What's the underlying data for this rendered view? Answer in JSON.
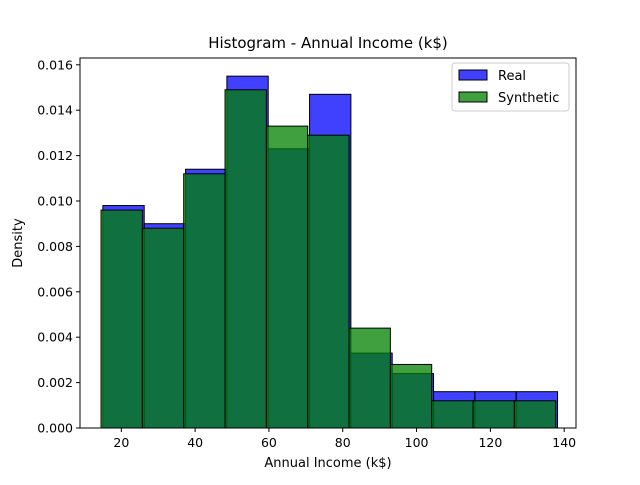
{
  "chart_data": {
    "type": "bar",
    "title": "Histogram - Annual Income (k$)",
    "xlabel": "Annual Income (k$)",
    "ylabel": "Density",
    "xlim": [
      8.8,
      143.2
    ],
    "ylim": [
      0,
      0.0163
    ],
    "xticks": [
      20,
      40,
      60,
      80,
      100,
      120,
      140
    ],
    "yticks": [
      0.0,
      0.002,
      0.004,
      0.006,
      0.008,
      0.01,
      0.012,
      0.014,
      0.016
    ],
    "ytick_labels": [
      "0.000",
      "0.002",
      "0.004",
      "0.006",
      "0.008",
      "0.010",
      "0.012",
      "0.014",
      "0.016"
    ],
    "grid": false,
    "legend_position": "top-right",
    "series": [
      {
        "name": "Real",
        "color": "#0000ff",
        "opacity": 0.75,
        "bin_edges": [
          15,
          26.2,
          37.4,
          48.6,
          59.8,
          71,
          82.2,
          93.4,
          104.6,
          115.8,
          127,
          138.2
        ],
        "values": [
          0.0098,
          0.009,
          0.0114,
          0.0155,
          0.0123,
          0.0147,
          0.0033,
          0.0024,
          0.0016,
          0.0016,
          0.0016
        ]
      },
      {
        "name": "Synthetic",
        "color": "#008000",
        "opacity": 0.75,
        "bin_edges": [
          14.5,
          25.7,
          36.9,
          48.1,
          59.3,
          70.5,
          81.7,
          92.9,
          104.1,
          115.3,
          126.5,
          137.7
        ],
        "values": [
          0.0096,
          0.0088,
          0.0112,
          0.0149,
          0.0133,
          0.0129,
          0.0044,
          0.0028,
          0.0012,
          0.0012,
          0.0012
        ]
      }
    ]
  }
}
